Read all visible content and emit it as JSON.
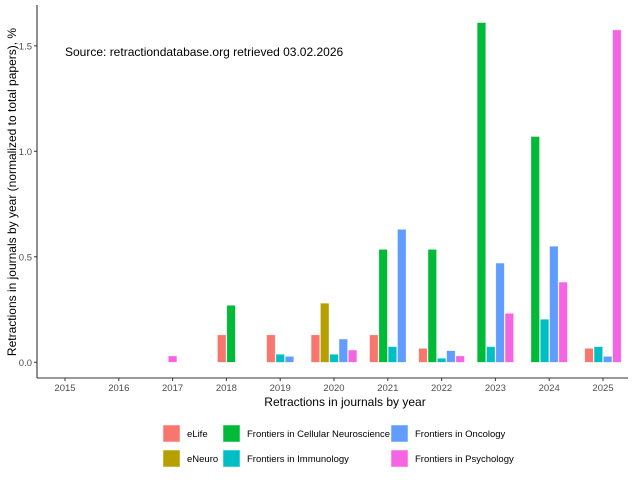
{
  "chart_data": {
    "type": "bar",
    "title": "",
    "annotation": "Source: retractiondatabase.org retrieved 03.02.2026",
    "xlabel": "Retractions in journals by year",
    "ylabel": "Retractions in journals by year (normalized to total papers), %",
    "ylim": [
      0,
      1.65
    ],
    "yticks": [
      0,
      0.5,
      1.0,
      1.5
    ],
    "ytick_labels": [
      "0.0",
      "0.5",
      "1.0",
      "1.5"
    ],
    "grid": false,
    "legend_position": "bottom",
    "categories": [
      "2015",
      "2016",
      "2017",
      "2018",
      "2019",
      "2020",
      "2021",
      "2022",
      "2023",
      "2024",
      "2025"
    ],
    "series": [
      {
        "name": "eLife",
        "color": "#F8766D",
        "values": [
          null,
          null,
          null,
          0.13,
          0.13,
          0.13,
          0.13,
          0.066,
          null,
          null,
          0.066
        ]
      },
      {
        "name": "eNeuro",
        "color": "#B79F00",
        "values": [
          null,
          null,
          null,
          null,
          null,
          0.28,
          null,
          null,
          null,
          null,
          null
        ]
      },
      {
        "name": "Frontiers in Cellular Neuroscience",
        "color": "#00BA38",
        "values": [
          null,
          null,
          null,
          0.27,
          null,
          null,
          0.535,
          0.535,
          1.61,
          1.07,
          null
        ]
      },
      {
        "name": "Frontiers in Immunology",
        "color": "#00BFC4",
        "values": [
          null,
          null,
          null,
          null,
          0.038,
          0.038,
          0.074,
          0.019,
          0.074,
          0.204,
          0.074
        ]
      },
      {
        "name": "Frontiers in Oncology",
        "color": "#619CFF",
        "values": [
          null,
          null,
          null,
          null,
          0.028,
          0.11,
          0.63,
          0.055,
          0.47,
          0.55,
          0.028
        ]
      },
      {
        "name": "Frontiers in Psychology",
        "color": "#F564E3",
        "values": [
          null,
          null,
          0.03,
          null,
          null,
          0.058,
          null,
          0.03,
          0.232,
          0.38,
          1.575
        ]
      }
    ]
  }
}
